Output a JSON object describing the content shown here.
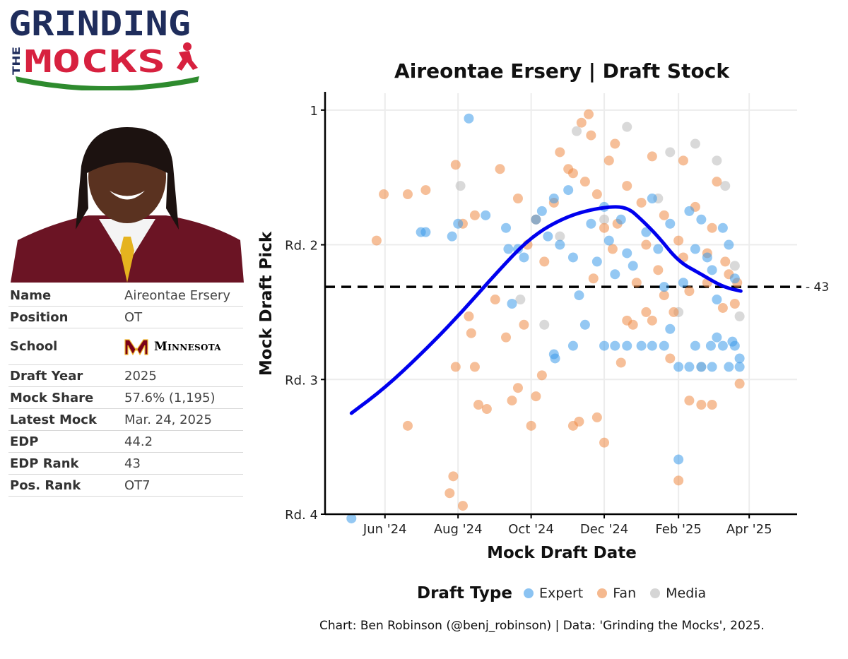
{
  "logo": {
    "line1": "GRINDING",
    "line2_small": "THE",
    "line2_big": "MOCKS"
  },
  "player": {
    "rows": [
      {
        "label": "Name",
        "value": "Aireontae Ersery"
      },
      {
        "label": "Position",
        "value": "OT"
      },
      {
        "label": "School",
        "value": "Minnesota"
      },
      {
        "label": "Draft Year",
        "value": "2025"
      },
      {
        "label": "Mock Share",
        "value": "57.6% (1,195)"
      },
      {
        "label": "Latest Mock",
        "value": "Mar. 24, 2025"
      },
      {
        "label": "EDP",
        "value": "44.2"
      },
      {
        "label": "EDP Rank",
        "value": "43"
      },
      {
        "label": "Pos. Rank",
        "value": "OT7"
      }
    ],
    "school_logo_letter": "M"
  },
  "colors": {
    "expert": "#3d9be9",
    "fan": "#ee8a45",
    "media": "#b9b9b9",
    "trend": "#0000ee",
    "logo_navy": "#1f2d5c",
    "logo_red": "#d7213f",
    "logo_green": "#2e8b2e",
    "school_maroon": "#7a0019",
    "school_gold": "#f1b82d"
  },
  "chart_data": {
    "type": "scatter",
    "title": "Aireontae Ersery | Draft Stock",
    "xlabel": "Mock Draft Date",
    "ylabel": "Mock Draft Pick",
    "x_ticks": [
      {
        "date": "2024-06-01",
        "label": "Jun '24"
      },
      {
        "date": "2024-08-01",
        "label": "Aug '24"
      },
      {
        "date": "2024-10-01",
        "label": "Oct '24"
      },
      {
        "date": "2024-12-01",
        "label": "Dec '24"
      },
      {
        "date": "2025-02-01",
        "label": "Feb '25"
      },
      {
        "date": "2025-04-01",
        "label": "Apr '25"
      }
    ],
    "xlim": [
      "2024-04-12",
      "2025-04-41"
    ],
    "y_ticks": [
      {
        "pick": 1,
        "label": "1"
      },
      {
        "pick": 33,
        "label": "Rd. 2"
      },
      {
        "pick": 65,
        "label": "Rd. 3"
      },
      {
        "pick": 97,
        "label": "Rd. 4"
      }
    ],
    "ylim": [
      97,
      -3
    ],
    "y_reversed": true,
    "reference_line": {
      "pick": 43,
      "label": "43",
      "style": "dashed"
    },
    "trend_line": {
      "points": [
        [
          "2024-05-04",
          73
        ],
        [
          "2024-06-01",
          67
        ],
        [
          "2024-07-01",
          59
        ],
        [
          "2024-08-01",
          50
        ],
        [
          "2024-09-01",
          40
        ],
        [
          "2024-10-01",
          31
        ],
        [
          "2024-11-01",
          26
        ],
        [
          "2024-12-01",
          24
        ],
        [
          "2024-12-20",
          24
        ],
        [
          "2025-01-01",
          27
        ],
        [
          "2025-01-15",
          31
        ],
        [
          "2025-02-01",
          37
        ],
        [
          "2025-02-20",
          40
        ],
        [
          "2025-03-10",
          43
        ],
        [
          "2025-03-25",
          44
        ]
      ]
    },
    "legend": {
      "title": "Draft Type",
      "placement": "bottom"
    },
    "series": [
      {
        "name": "Expert",
        "points": [
          [
            "2024-05-04",
            98
          ],
          [
            "2024-08-10",
            3
          ],
          [
            "2024-07-01",
            30
          ],
          [
            "2024-07-05",
            30
          ],
          [
            "2024-07-27",
            31
          ],
          [
            "2024-08-01",
            28
          ],
          [
            "2024-08-24",
            26
          ],
          [
            "2024-09-10",
            29
          ],
          [
            "2024-09-12",
            34
          ],
          [
            "2024-09-20",
            34
          ],
          [
            "2024-09-25",
            36
          ],
          [
            "2024-10-05",
            27
          ],
          [
            "2024-10-10",
            25
          ],
          [
            "2024-10-15",
            31
          ],
          [
            "2024-10-20",
            22
          ],
          [
            "2024-10-25",
            33
          ],
          [
            "2024-11-01",
            20
          ],
          [
            "2024-11-05",
            36
          ],
          [
            "2024-11-10",
            45
          ],
          [
            "2024-11-20",
            28
          ],
          [
            "2024-11-25",
            37
          ],
          [
            "2024-12-01",
            24
          ],
          [
            "2024-12-05",
            32
          ],
          [
            "2024-12-10",
            40
          ],
          [
            "2024-12-15",
            27
          ],
          [
            "2024-12-20",
            35
          ],
          [
            "2024-12-25",
            38
          ],
          [
            "2025-01-05",
            30
          ],
          [
            "2025-01-10",
            22
          ],
          [
            "2025-01-15",
            34
          ],
          [
            "2025-01-20",
            43
          ],
          [
            "2025-01-25",
            28
          ],
          [
            "2025-01-10",
            57
          ],
          [
            "2025-02-01",
            84
          ],
          [
            "2025-02-05",
            42
          ],
          [
            "2025-02-10",
            25
          ],
          [
            "2025-02-15",
            34
          ],
          [
            "2025-02-20",
            27
          ],
          [
            "2025-02-25",
            36
          ],
          [
            "2025-03-01",
            39
          ],
          [
            "2025-03-05",
            46
          ],
          [
            "2025-03-10",
            29
          ],
          [
            "2025-03-15",
            33
          ],
          [
            "2025-03-20",
            41
          ],
          [
            "2025-03-24",
            60
          ],
          [
            "2024-10-20",
            59
          ],
          [
            "2024-10-21",
            60
          ],
          [
            "2024-11-05",
            57
          ],
          [
            "2024-12-01",
            57
          ],
          [
            "2024-12-10",
            57
          ],
          [
            "2024-12-20",
            57
          ],
          [
            "2025-01-01",
            57
          ],
          [
            "2025-01-20",
            57
          ],
          [
            "2025-02-15",
            57
          ],
          [
            "2025-02-28",
            57
          ],
          [
            "2025-03-10",
            57
          ],
          [
            "2025-03-20",
            57
          ],
          [
            "2025-02-01",
            62
          ],
          [
            "2025-02-10",
            62
          ],
          [
            "2025-02-20",
            62
          ],
          [
            "2025-03-01",
            62
          ],
          [
            "2025-03-15",
            62
          ],
          [
            "2025-03-24",
            62
          ],
          [
            "2024-09-15",
            47
          ],
          [
            "2024-11-15",
            52
          ],
          [
            "2025-01-25",
            53
          ],
          [
            "2025-03-05",
            55
          ],
          [
            "2025-03-18",
            56
          ]
        ]
      },
      {
        "name": "Fan",
        "points": [
          [
            "2024-05-25",
            32
          ],
          [
            "2024-05-31",
            21
          ],
          [
            "2024-06-20",
            21
          ],
          [
            "2024-07-05",
            20
          ],
          [
            "2024-07-30",
            14
          ],
          [
            "2024-08-05",
            28
          ],
          [
            "2024-08-15",
            26
          ],
          [
            "2024-09-05",
            15
          ],
          [
            "2024-09-20",
            22
          ],
          [
            "2024-10-05",
            27
          ],
          [
            "2024-10-20",
            23
          ],
          [
            "2024-11-01",
            15
          ],
          [
            "2024-11-15",
            18
          ],
          [
            "2024-11-20",
            7
          ],
          [
            "2024-11-25",
            21
          ],
          [
            "2024-12-01",
            29
          ],
          [
            "2024-12-10",
            9
          ],
          [
            "2024-12-20",
            19
          ],
          [
            "2025-01-01",
            23
          ],
          [
            "2025-01-10",
            12
          ],
          [
            "2025-01-20",
            26
          ],
          [
            "2025-02-01",
            32
          ],
          [
            "2025-02-05",
            13
          ],
          [
            "2025-02-15",
            24
          ],
          [
            "2025-02-25",
            35
          ],
          [
            "2025-03-05",
            18
          ],
          [
            "2025-03-15",
            40
          ],
          [
            "2025-03-20",
            47
          ],
          [
            "2024-08-10",
            50
          ],
          [
            "2024-08-12",
            54
          ],
          [
            "2024-09-01",
            46
          ],
          [
            "2024-09-10",
            55
          ],
          [
            "2024-09-25",
            52
          ],
          [
            "2024-10-10",
            64
          ],
          [
            "2024-08-15",
            62
          ],
          [
            "2024-07-30",
            62
          ],
          [
            "2024-08-18",
            71
          ],
          [
            "2024-08-25",
            72
          ],
          [
            "2024-09-20",
            67
          ],
          [
            "2024-10-05",
            69
          ],
          [
            "2024-11-10",
            75
          ],
          [
            "2024-12-01",
            80
          ],
          [
            "2024-12-15",
            61
          ],
          [
            "2024-12-20",
            51
          ],
          [
            "2025-01-10",
            51
          ],
          [
            "2025-01-25",
            60
          ],
          [
            "2025-02-10",
            70
          ],
          [
            "2025-02-20",
            71
          ],
          [
            "2025-03-01",
            71
          ],
          [
            "2025-02-01",
            89
          ],
          [
            "2024-06-20",
            76
          ],
          [
            "2024-07-25",
            92
          ],
          [
            "2024-07-28",
            88
          ],
          [
            "2024-08-05",
            95
          ],
          [
            "2024-09-15",
            70
          ],
          [
            "2024-10-01",
            76
          ],
          [
            "2024-11-05",
            76
          ],
          [
            "2024-11-25",
            74
          ],
          [
            "2024-12-25",
            52
          ],
          [
            "2025-01-05",
            49
          ],
          [
            "2025-01-20",
            45
          ],
          [
            "2025-02-25",
            42
          ],
          [
            "2025-03-10",
            48
          ],
          [
            "2025-03-24",
            66
          ],
          [
            "2024-10-25",
            11
          ],
          [
            "2024-11-05",
            16
          ],
          [
            "2024-11-12",
            4
          ],
          [
            "2024-11-18",
            2
          ],
          [
            "2024-12-05",
            13
          ],
          [
            "2024-12-12",
            28
          ],
          [
            "2025-01-05",
            33
          ],
          [
            "2025-01-15",
            39
          ],
          [
            "2025-02-05",
            36
          ],
          [
            "2025-02-10",
            44
          ],
          [
            "2025-03-01",
            29
          ],
          [
            "2025-03-12",
            37
          ],
          [
            "2025-03-22",
            42
          ],
          [
            "2024-09-28",
            33
          ],
          [
            "2024-10-12",
            37
          ],
          [
            "2024-11-22",
            41
          ],
          [
            "2024-12-08",
            34
          ],
          [
            "2024-12-28",
            42
          ],
          [
            "2025-01-28",
            49
          ]
        ]
      },
      {
        "name": "Media",
        "points": [
          [
            "2024-08-03",
            19
          ],
          [
            "2024-09-22",
            46
          ],
          [
            "2024-10-12",
            52
          ],
          [
            "2024-11-08",
            6
          ],
          [
            "2024-12-20",
            5
          ],
          [
            "2025-01-25",
            11
          ],
          [
            "2025-02-15",
            9
          ],
          [
            "2025-03-05",
            13
          ],
          [
            "2025-03-12",
            19
          ],
          [
            "2025-03-20",
            38
          ],
          [
            "2025-02-01",
            49
          ],
          [
            "2025-02-20",
            62
          ],
          [
            "2025-01-15",
            22
          ],
          [
            "2024-12-01",
            27
          ],
          [
            "2024-10-25",
            31
          ],
          [
            "2025-03-24",
            50
          ]
        ]
      }
    ]
  },
  "caption": "Chart: Ben Robinson (@benj_robinson) | Data: 'Grinding the Mocks', 2025."
}
